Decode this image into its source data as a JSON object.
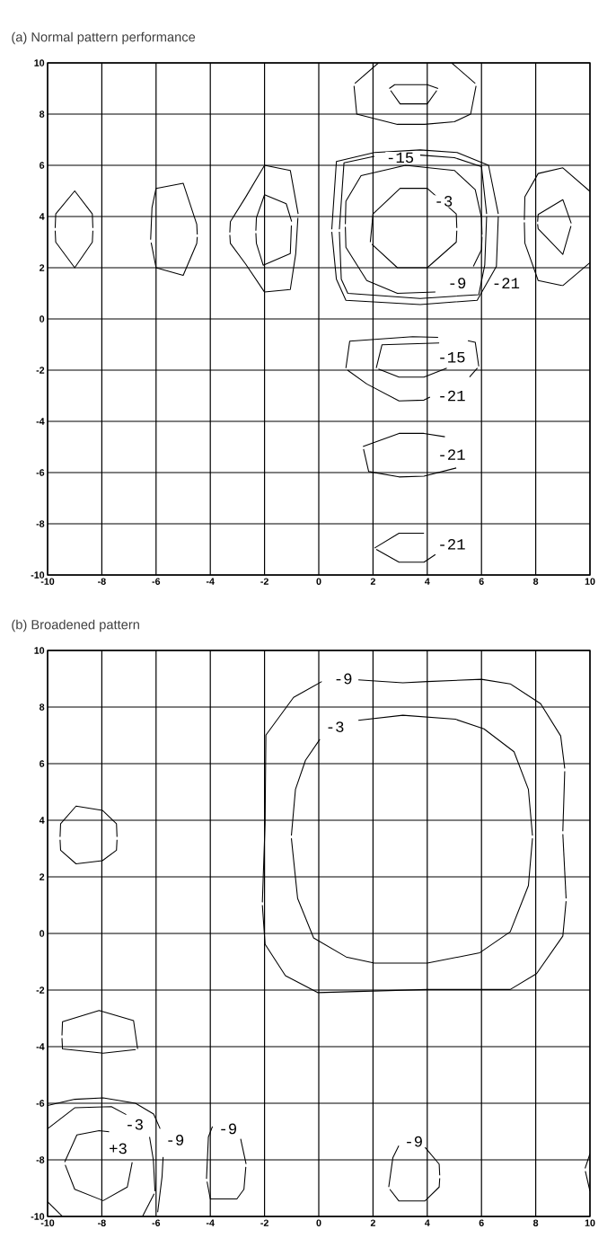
{
  "chart_data": [
    {
      "type": "line",
      "title": "(a) Normal pattern performance",
      "xlim": [
        -10,
        10
      ],
      "ylim": [
        -10,
        10
      ],
      "xticks": [
        -10,
        -8,
        -6,
        -4,
        -2,
        0,
        2,
        4,
        6,
        8,
        10
      ],
      "yticks": [
        -10,
        -8,
        -6,
        -4,
        -2,
        0,
        2,
        4,
        6,
        8,
        10
      ],
      "grid": true,
      "series": [
        {
          "color": "#000000",
          "x": [
            1.33,
            2.2
          ],
          "values": [
            9.2,
            10
          ]
        },
        {
          "color": "#000000",
          "x": [
            1.3,
            1.4,
            2.9,
            3.9,
            5.0,
            5.6,
            5.8
          ],
          "values": [
            9.1,
            8.0,
            7.6,
            7.6,
            7.7,
            8.0,
            9.1
          ]
        },
        {
          "color": "#000000",
          "x": [
            4.9,
            5.77
          ],
          "values": [
            10,
            9.2
          ]
        },
        {
          "color": "#000000",
          "x": [
            2.6,
            2.8,
            4.0,
            4.4
          ],
          "values": [
            9.0,
            9.15,
            9.15,
            9.0
          ]
        },
        {
          "color": "#000000",
          "x": [
            2.65,
            3.0,
            4.0,
            4.35
          ],
          "values": [
            8.92,
            8.4,
            8.4,
            8.92
          ]
        },
        {
          "color": "#000000",
          "x": [
            -9.72,
            -9.7,
            -9.0,
            -8.35,
            -8.33
          ],
          "values": [
            3.55,
            4.1,
            5.0,
            4.1,
            3.55
          ]
        },
        {
          "color": "#000000",
          "x": [
            -9.72,
            -9.7,
            -9.0,
            -8.35,
            -8.33
          ],
          "values": [
            3.45,
            3.0,
            2.0,
            3.0,
            3.45
          ]
        },
        {
          "color": "#000000",
          "x": [
            -6.2,
            -6.15,
            -6.0,
            -5.0,
            -4.5,
            -4.48
          ],
          "values": [
            3.1,
            4.35,
            5.1,
            5.3,
            3.7,
            3.3
          ]
        },
        {
          "color": "#000000",
          "x": [
            -6.18,
            -6.0,
            -5.0,
            -4.5,
            -4.48
          ],
          "values": [
            2.98,
            2.0,
            1.7,
            2.95,
            3.2
          ]
        },
        {
          "color": "#000000",
          "x": [
            -3.28,
            -3.26,
            -2.7,
            -2.0,
            -1.05,
            -0.76
          ],
          "values": [
            3.38,
            3.8,
            4.75,
            6.0,
            5.8,
            4.1
          ]
        },
        {
          "color": "#000000",
          "x": [
            -3.28,
            -3.26,
            -2.7,
            -2.0,
            -1.05,
            -0.85,
            -0.77
          ],
          "values": [
            3.28,
            2.95,
            2.15,
            1.05,
            1.15,
            2.55,
            3.95
          ]
        },
        {
          "color": "#000000",
          "x": [
            -2.32,
            -2.3,
            -2.0,
            -1.2,
            -1.0
          ],
          "values": [
            3.45,
            3.95,
            4.85,
            4.5,
            3.8
          ]
        },
        {
          "color": "#000000",
          "x": [
            -2.32,
            -2.3,
            -2.05,
            -1.05,
            -1.01
          ],
          "values": [
            3.35,
            2.95,
            2.1,
            2.55,
            3.65
          ]
        },
        {
          "color": "#000000",
          "x": [
            1.9,
            2.0,
            3.0,
            4.0,
            5.07,
            5.09
          ],
          "values": [
            3.0,
            4.1,
            5.1,
            5.1,
            4.1,
            3.55
          ]
        },
        {
          "color": "#000000",
          "x": [
            1.96,
            2.9,
            4.0,
            5.07,
            5.09
          ],
          "values": [
            2.92,
            2.0,
            2.0,
            3.0,
            3.45
          ]
        },
        {
          "color": "#000000",
          "x": [
            0.98,
            1.0,
            1.56,
            3.2,
            5.0,
            5.77,
            6.0,
            6.02
          ],
          "values": [
            3.7,
            4.6,
            5.6,
            6.0,
            5.8,
            5.05,
            3.95,
            3.3
          ]
        },
        {
          "color": "#000000",
          "x": [
            5.7,
            6.0,
            6.02
          ],
          "values": [
            2.05,
            2.7,
            3.2
          ]
        },
        {
          "color": "#000000",
          "x": [
            0.98,
            1.0,
            1.77,
            2.9,
            4.3
          ],
          "values": [
            3.6,
            2.8,
            1.5,
            1.0,
            1.05
          ]
        },
        {
          "color": "#000000",
          "x": [
            0.76,
            0.93,
            2.05
          ],
          "values": [
            3.5,
            6.1,
            6.35
          ]
        },
        {
          "color": "#000000",
          "x": [
            3.74,
            5.0,
            6.0,
            6.19
          ],
          "values": [
            6.4,
            6.3,
            5.95,
            4.1
          ]
        },
        {
          "color": "#000000",
          "x": [
            0.76,
            0.83,
            1.07,
            3.74,
            5.9,
            6.12,
            6.19
          ],
          "values": [
            3.4,
            1.55,
            1.0,
            0.8,
            0.95,
            2.1,
            4.0
          ]
        },
        {
          "color": "#000000",
          "x": [
            0.48,
            0.65,
            2.05,
            3.74,
            5.1,
            6.26,
            6.62
          ],
          "values": [
            3.5,
            6.15,
            6.5,
            6.6,
            6.5,
            6.0,
            4.1
          ]
        },
        {
          "color": "#000000",
          "x": [
            0.48,
            0.65,
            1.0,
            3.74,
            5.84,
            6.55,
            6.62
          ],
          "values": [
            3.4,
            1.55,
            0.73,
            0.56,
            0.73,
            2.05,
            4.0
          ]
        },
        {
          "color": "#000000",
          "x": [
            7.58,
            7.6,
            8.09,
            9.0,
            10
          ],
          "values": [
            3.87,
            4.77,
            5.68,
            5.9,
            4.98
          ]
        },
        {
          "color": "#000000",
          "x": [
            7.58,
            7.6,
            8.09,
            9.0,
            10
          ],
          "values": [
            3.77,
            2.96,
            1.5,
            1.3,
            2.2
          ]
        },
        {
          "color": "#000000",
          "x": [
            8.07,
            8.09,
            9.0,
            9.31
          ],
          "values": [
            3.8,
            4.08,
            4.66,
            3.73
          ]
        },
        {
          "color": "#000000",
          "x": [
            8.07,
            8.09,
            9.0,
            9.3
          ],
          "values": [
            3.7,
            3.52,
            2.52,
            3.63
          ]
        },
        {
          "color": "#000000",
          "x": [
            1.0,
            1.14,
            3.46,
            4.4
          ],
          "values": [
            -1.92,
            -0.87,
            -0.69,
            -0.72
          ]
        },
        {
          "color": "#000000",
          "x": [
            1.06,
            1.77,
            2.96,
            3.88,
            4.1
          ],
          "values": [
            -2.0,
            -2.54,
            -3.2,
            -3.17,
            -3.05
          ]
        },
        {
          "color": "#000000",
          "x": [
            5.5,
            5.77,
            5.9
          ],
          "values": [
            -0.85,
            -0.91,
            -1.85
          ]
        },
        {
          "color": "#000000",
          "x": [
            5.56,
            5.85
          ],
          "values": [
            -2.27,
            -1.92
          ]
        },
        {
          "color": "#000000",
          "x": [
            2.12,
            2.33,
            4.44
          ],
          "values": [
            -1.92,
            -1.01,
            -0.94
          ]
        },
        {
          "color": "#000000",
          "x": [
            2.2,
            2.96,
            3.88,
            4.72
          ],
          "values": [
            -1.96,
            -2.27,
            -2.27,
            -1.92
          ]
        },
        {
          "color": "#000000",
          "x": [
            1.63,
            2.96,
            3.88,
            4.65
          ],
          "values": [
            -4.98,
            -4.47,
            -4.47,
            -4.6
          ]
        },
        {
          "color": "#000000",
          "x": [
            1.65,
            1.84,
            2.96,
            3.88,
            5.07
          ],
          "values": [
            -5.08,
            -5.96,
            -6.17,
            -6.14,
            -5.82
          ]
        },
        {
          "color": "#000000",
          "x": [
            2.05,
            2.96,
            3.88
          ],
          "values": [
            -8.95,
            -8.37,
            -8.37
          ]
        },
        {
          "color": "#000000",
          "x": [
            2.12,
            2.96,
            3.88,
            4.3
          ],
          "values": [
            -9.0,
            -9.5,
            -9.5,
            -9.2
          ]
        }
      ],
      "annotations": [
        {
          "text": "-15",
          "x": 3.0,
          "y": 6.3
        },
        {
          "text": "-3",
          "x": 4.6,
          "y": 4.6
        },
        {
          "text": "-9",
          "x": 5.1,
          "y": 1.4
        },
        {
          "text": "-21",
          "x": 6.9,
          "y": 1.4
        },
        {
          "text": "-15",
          "x": 4.9,
          "y": -1.5
        },
        {
          "text": "-21",
          "x": 4.9,
          "y": -3.0
        },
        {
          "text": "-21",
          "x": 4.9,
          "y": -5.3
        },
        {
          "text": "-21",
          "x": 4.9,
          "y": -8.8
        }
      ]
    },
    {
      "type": "line",
      "title": "(b) Broadened pattern",
      "xlim": [
        -10,
        10
      ],
      "ylim": [
        -10,
        10
      ],
      "xticks": [
        -10,
        -8,
        -6,
        -4,
        -2,
        0,
        2,
        4,
        6,
        8,
        10
      ],
      "yticks": [
        -10,
        -8,
        -6,
        -4,
        -2,
        0,
        2,
        4,
        6,
        8,
        10
      ],
      "grid": true,
      "series": [
        {
          "color": "#000000",
          "x": [
            -2.08,
            -1.98,
            -1.95,
            -0.93,
            0.11
          ],
          "values": [
            1.1,
            3.9,
            7.01,
            8.34,
            8.9
          ]
        },
        {
          "color": "#000000",
          "x": [
            1.46,
            3.1,
            4.0,
            6.0,
            7.06,
            8.18,
            8.92,
            9.07
          ],
          "values": [
            8.96,
            8.86,
            8.9,
            8.98,
            8.82,
            8.12,
            6.98,
            5.83
          ]
        },
        {
          "color": "#000000",
          "x": [
            9.0,
            9.07
          ],
          "values": [
            3.61,
            5.73
          ]
        },
        {
          "color": "#000000",
          "x": [
            9.0,
            9.12
          ],
          "values": [
            3.51,
            1.24
          ]
        },
        {
          "color": "#000000",
          "x": [
            -2.08,
            -1.98,
            -1.23,
            -0.04,
            4.0,
            7.06,
            8.03,
            9.0,
            9.12
          ],
          "values": [
            1.0,
            -0.38,
            -1.49,
            -2.09,
            -1.98,
            -1.98,
            -1.42,
            -0.09,
            1.14
          ]
        },
        {
          "color": "#000000",
          "x": [
            -1.01,
            -0.86,
            -0.49,
            0.04
          ],
          "values": [
            3.46,
            5.09,
            6.12,
            6.86
          ]
        },
        {
          "color": "#000000",
          "x": [
            1.46,
            3.1,
            5.04,
            6.09,
            7.2,
            7.73,
            7.88
          ],
          "values": [
            7.53,
            7.71,
            7.57,
            7.23,
            6.42,
            5.09,
            3.46
          ]
        },
        {
          "color": "#000000",
          "x": [
            -1.01,
            -0.78,
            -0.19,
            1.01,
            2.05,
            4.0,
            5.94,
            7.06,
            7.73,
            7.88
          ],
          "values": [
            3.36,
            1.24,
            -0.16,
            -0.83,
            -1.05,
            -1.05,
            -0.68,
            0.06,
            1.69,
            3.36
          ]
        },
        {
          "color": "#000000",
          "x": [
            -9.54,
            -9.52,
            -8.95,
            -7.98,
            -7.46,
            -7.44
          ],
          "values": [
            3.41,
            3.88,
            4.5,
            4.35,
            3.88,
            3.41
          ]
        },
        {
          "color": "#000000",
          "x": [
            -9.54,
            -9.52,
            -8.95,
            -7.98,
            -7.46,
            -7.44
          ],
          "values": [
            3.31,
            2.94,
            2.46,
            2.57,
            2.94,
            3.31
          ]
        },
        {
          "color": "#000000",
          "x": [
            -9.47,
            -9.45,
            -8.1,
            -6.83,
            -6.68
          ],
          "values": [
            -3.6,
            -3.12,
            -2.72,
            -3.08,
            -4.08
          ]
        },
        {
          "color": "#000000",
          "x": [
            -9.47,
            -9.45,
            -7.95,
            -6.75
          ],
          "values": [
            -3.7,
            -4.08,
            -4.23,
            -4.1
          ]
        },
        {
          "color": "#000000",
          "x": [
            -10,
            -9.0,
            -7.95,
            -6.76,
            -6.09,
            -5.85
          ],
          "values": [
            -6.08,
            -5.86,
            -5.81,
            -6.0,
            -6.38,
            -6.9
          ]
        },
        {
          "color": "#000000",
          "x": [
            -5.74,
            -5.78,
            -5.94
          ],
          "values": [
            -7.9,
            -8.6,
            -9.85
          ]
        },
        {
          "color": "#000000",
          "x": [
            -10,
            -9.0,
            -7.65,
            -7.1
          ],
          "values": [
            -6.9,
            -6.16,
            -6.12,
            -6.4
          ]
        },
        {
          "color": "#000000",
          "x": [
            -6.24,
            -6.1,
            -6.04
          ],
          "values": [
            -7.19,
            -8.0,
            -9.11
          ]
        },
        {
          "color": "#000000",
          "x": [
            -6.5,
            -6.07
          ],
          "values": [
            -10,
            -9.2
          ]
        },
        {
          "color": "#000000",
          "x": [
            -10,
            -9.45
          ],
          "values": [
            -9.48,
            -10
          ]
        },
        {
          "color": "#000000",
          "x": [
            -9.37,
            -8.92,
            -8.1,
            -7.73
          ],
          "values": [
            -8.08,
            -7.12,
            -6.97,
            -7.01
          ]
        },
        {
          "color": "#000000",
          "x": [
            -9.35,
            -9.0,
            -7.95,
            -7.06,
            -6.88
          ],
          "values": [
            -8.18,
            -9.04,
            -9.44,
            -8.96,
            -8.08
          ]
        },
        {
          "color": "#000000",
          "x": [
            -4.14,
            -4.07,
            -3.92
          ],
          "values": [
            -8.67,
            -7.19,
            -6.82
          ]
        },
        {
          "color": "#000000",
          "x": [
            -2.88,
            -2.68
          ],
          "values": [
            -7.26,
            -8.15
          ]
        },
        {
          "color": "#000000",
          "x": [
            -4.12,
            -4.0,
            -3.02,
            -2.76,
            -2.69
          ],
          "values": [
            -8.77,
            -9.38,
            -9.38,
            -9.04,
            -8.25
          ]
        },
        {
          "color": "#000000",
          "x": [
            2.58,
            2.73,
            2.95
          ],
          "values": [
            -8.96,
            -7.93,
            -7.5
          ]
        },
        {
          "color": "#000000",
          "x": [
            3.92,
            4.44,
            4.46
          ],
          "values": [
            -7.56,
            -8.15,
            -8.55
          ]
        },
        {
          "color": "#000000",
          "x": [
            2.62,
            2.95,
            3.92,
            4.44,
            4.46
          ],
          "values": [
            -9.04,
            -9.45,
            -9.45,
            -8.96,
            -8.65
          ]
        },
        {
          "color": "#000000",
          "x": [
            9.82,
            10
          ],
          "values": [
            -8.3,
            -7.78
          ]
        },
        {
          "color": "#000000",
          "x": [
            9.83,
            10
          ],
          "values": [
            -8.4,
            -9.11
          ]
        }
      ],
      "annotations": [
        {
          "text": "-9",
          "x": 0.9,
          "y": 9.0
        },
        {
          "text": "-3",
          "x": 0.6,
          "y": 7.3
        },
        {
          "text": "-3",
          "x": -6.8,
          "y": -6.75
        },
        {
          "text": "+3",
          "x": -7.4,
          "y": -7.6
        },
        {
          "text": "-9",
          "x": -5.3,
          "y": -7.3
        },
        {
          "text": "-9",
          "x": -3.35,
          "y": -6.9
        },
        {
          "text": "-9",
          "x": 3.5,
          "y": -7.35
        }
      ]
    }
  ]
}
